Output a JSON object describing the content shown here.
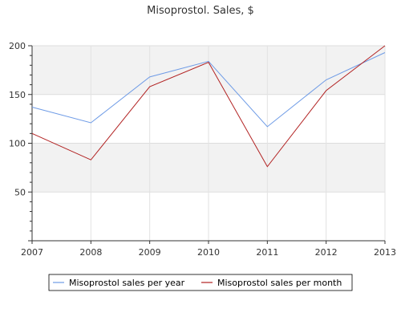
{
  "chart_data": {
    "type": "line",
    "title": "Misoprostol. Sales, $",
    "xlabel": "",
    "ylabel": "",
    "x": [
      "2007",
      "2008",
      "2009",
      "2010",
      "2011",
      "2012",
      "2013"
    ],
    "series": [
      {
        "name": "Misoprostol sales per year",
        "color": "#6e9be6",
        "values": [
          137,
          121,
          168,
          184,
          117,
          165,
          193
        ]
      },
      {
        "name": "Misoprostol sales per month",
        "color": "#b22222",
        "values": [
          110,
          83,
          158,
          183,
          76,
          154,
          200
        ]
      }
    ],
    "y_ticks": [
      "50",
      "100",
      "150",
      "200"
    ],
    "ylim": [
      0,
      200
    ],
    "grid": true,
    "alternating_bands": true,
    "legend_position": "bottom"
  }
}
